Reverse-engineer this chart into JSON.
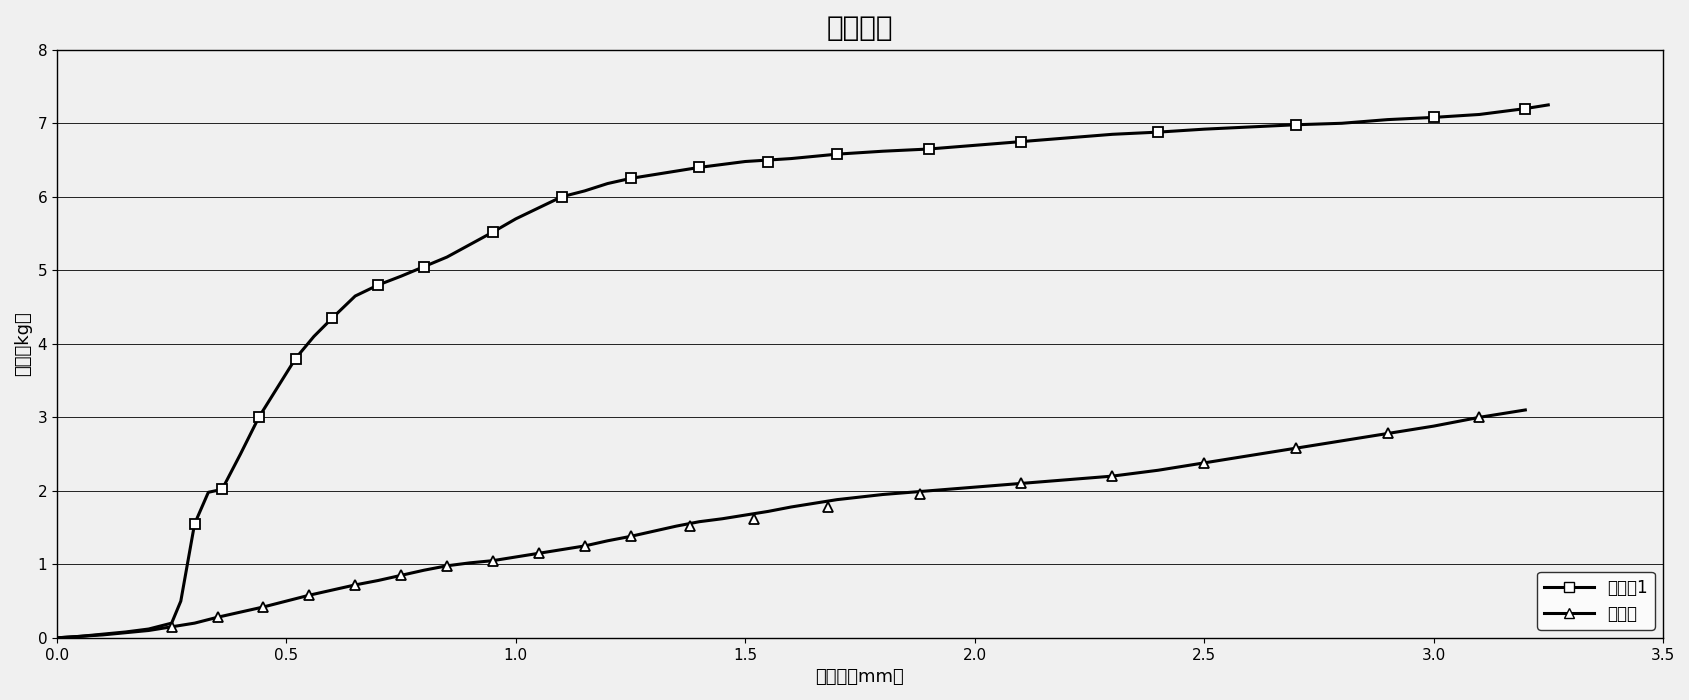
{
  "title": "电芯硬度",
  "xlabel": "变形量（mm）",
  "ylabel": "压力（kg）",
  "xlim": [
    0,
    3.5
  ],
  "ylim": [
    0,
    8
  ],
  "xticks": [
    0,
    0.5,
    1.0,
    1.5,
    2.0,
    2.5,
    3.0,
    3.5
  ],
  "yticks": [
    0,
    1,
    2,
    3,
    4,
    5,
    6,
    7,
    8
  ],
  "series1_label": "实施例1",
  "series2_label": "对比例",
  "series1_x": [
    0,
    0.05,
    0.1,
    0.15,
    0.2,
    0.25,
    0.27,
    0.3,
    0.33,
    0.36,
    0.4,
    0.44,
    0.48,
    0.52,
    0.56,
    0.6,
    0.65,
    0.7,
    0.75,
    0.8,
    0.85,
    0.9,
    0.95,
    1.0,
    1.05,
    1.1,
    1.15,
    1.2,
    1.25,
    1.3,
    1.35,
    1.4,
    1.5,
    1.6,
    1.7,
    1.8,
    1.9,
    2.0,
    2.1,
    2.2,
    2.3,
    2.4,
    2.5,
    2.6,
    2.7,
    2.8,
    2.9,
    3.0,
    3.1,
    3.2,
    3.25
  ],
  "series1_y": [
    0,
    0.02,
    0.05,
    0.08,
    0.12,
    0.2,
    0.5,
    1.55,
    1.98,
    2.02,
    2.5,
    3.0,
    3.4,
    3.8,
    4.1,
    4.35,
    4.65,
    4.8,
    4.92,
    5.05,
    5.18,
    5.35,
    5.52,
    5.7,
    5.85,
    6.0,
    6.08,
    6.18,
    6.25,
    6.3,
    6.35,
    6.4,
    6.48,
    6.52,
    6.58,
    6.62,
    6.65,
    6.7,
    6.75,
    6.8,
    6.85,
    6.88,
    6.92,
    6.95,
    6.98,
    7.0,
    7.05,
    7.08,
    7.12,
    7.2,
    7.25
  ],
  "series1_marker_x": [
    0.3,
    0.36,
    0.44,
    0.52,
    0.6,
    0.7,
    0.8,
    0.95,
    1.1,
    1.25,
    1.4,
    1.55,
    1.7,
    1.9,
    2.1,
    2.4,
    2.7,
    3.0,
    3.2
  ],
  "series1_marker_y": [
    1.55,
    2.02,
    3.0,
    3.8,
    4.35,
    4.8,
    5.05,
    5.52,
    6.0,
    6.25,
    6.4,
    6.48,
    6.58,
    6.65,
    6.75,
    6.88,
    6.98,
    7.08,
    7.2
  ],
  "series2_x": [
    0,
    0.05,
    0.1,
    0.15,
    0.2,
    0.25,
    0.3,
    0.35,
    0.4,
    0.45,
    0.5,
    0.55,
    0.6,
    0.65,
    0.7,
    0.75,
    0.8,
    0.85,
    0.9,
    0.95,
    1.0,
    1.05,
    1.1,
    1.15,
    1.2,
    1.25,
    1.3,
    1.35,
    1.4,
    1.45,
    1.5,
    1.55,
    1.6,
    1.7,
    1.8,
    1.9,
    2.0,
    2.1,
    2.2,
    2.3,
    2.4,
    2.5,
    2.6,
    2.7,
    2.8,
    2.9,
    3.0,
    3.1,
    3.2
  ],
  "series2_y": [
    0,
    0.02,
    0.04,
    0.07,
    0.1,
    0.15,
    0.2,
    0.28,
    0.35,
    0.42,
    0.5,
    0.58,
    0.65,
    0.72,
    0.78,
    0.85,
    0.92,
    0.98,
    1.02,
    1.05,
    1.1,
    1.15,
    1.2,
    1.25,
    1.32,
    1.38,
    1.45,
    1.52,
    1.58,
    1.62,
    1.67,
    1.72,
    1.78,
    1.88,
    1.95,
    2.0,
    2.05,
    2.1,
    2.15,
    2.2,
    2.28,
    2.38,
    2.48,
    2.58,
    2.68,
    2.78,
    2.88,
    3.0,
    3.1
  ],
  "series2_marker_x": [
    0.25,
    0.35,
    0.45,
    0.55,
    0.65,
    0.75,
    0.85,
    0.95,
    1.05,
    1.15,
    1.25,
    1.38,
    1.52,
    1.68,
    1.88,
    2.1,
    2.3,
    2.5,
    2.7,
    2.9,
    3.1
  ],
  "series2_marker_y": [
    0.15,
    0.28,
    0.42,
    0.58,
    0.72,
    0.85,
    0.98,
    1.05,
    1.15,
    1.25,
    1.38,
    1.52,
    1.62,
    1.78,
    1.95,
    2.1,
    2.2,
    2.38,
    2.58,
    2.78,
    3.0
  ],
  "line_color": "#000000",
  "bg_color": "#f0f0f0",
  "title_fontsize": 20,
  "label_fontsize": 13,
  "tick_fontsize": 11,
  "legend_fontsize": 12
}
